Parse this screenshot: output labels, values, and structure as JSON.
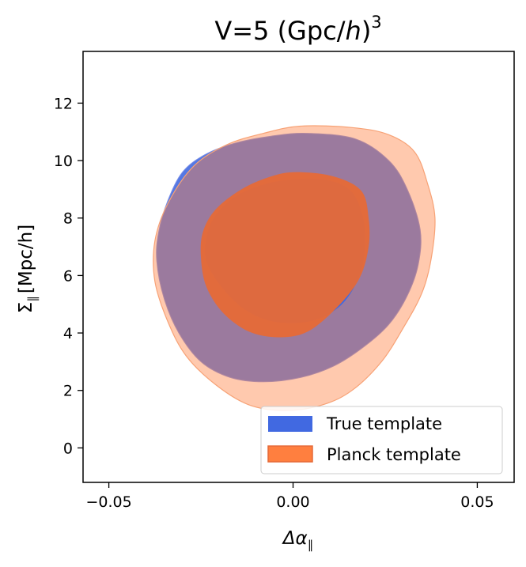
{
  "chart_data": {
    "type": "contour",
    "title": "V=5 (Gpc/h)^3",
    "title_parts": {
      "prefix": "V=5 (Gpc/",
      "italic": "h",
      "suffix": ")",
      "exponent": "3"
    },
    "xlabel": "Δα_∥",
    "xlabel_parts": {
      "symbol": "Δα",
      "subscript": "∥"
    },
    "ylabel": "Σ_∥ [Mpc/h]",
    "ylabel_parts": {
      "symbol": "Σ",
      "subscript": "∥",
      "rest": "[Mpc/h]"
    },
    "xlim": [
      -0.057,
      0.06
    ],
    "ylim": [
      -1.2,
      13.8
    ],
    "x_ticks": [
      {
        "value": -0.05,
        "label": "−0.05"
      },
      {
        "value": 0.0,
        "label": "0.00"
      },
      {
        "value": 0.05,
        "label": "0.05"
      }
    ],
    "y_ticks": [
      {
        "value": 0,
        "label": "0"
      },
      {
        "value": 2,
        "label": "2"
      },
      {
        "value": 4,
        "label": "4"
      },
      {
        "value": 6,
        "label": "6"
      },
      {
        "value": 8,
        "label": "8"
      },
      {
        "value": 10,
        "label": "10"
      },
      {
        "value": 12,
        "label": "12"
      }
    ],
    "legend_position": "lower right",
    "series": [
      {
        "name": "True template",
        "color": "#4169e1",
        "contours": [
          {
            "level": "2-sigma",
            "points": [
              [
                0.004,
                10.95
              ],
              [
                0.017,
                10.75
              ],
              [
                0.026,
                10.0
              ],
              [
                0.031,
                9.0
              ],
              [
                0.0345,
                7.6
              ],
              [
                0.034,
                6.4
              ],
              [
                0.031,
                5.3
              ],
              [
                0.026,
                4.3
              ],
              [
                0.019,
                3.5
              ],
              [
                0.011,
                2.85
              ],
              [
                0.002,
                2.45
              ],
              [
                -0.008,
                2.3
              ],
              [
                -0.017,
                2.45
              ],
              [
                -0.025,
                3.0
              ],
              [
                -0.031,
                4.0
              ],
              [
                -0.035,
                5.2
              ],
              [
                -0.037,
                6.5
              ],
              [
                -0.0365,
                7.5
              ],
              [
                -0.034,
                8.6
              ],
              [
                -0.03,
                9.6
              ],
              [
                -0.024,
                10.2
              ],
              [
                -0.016,
                10.6
              ],
              [
                -0.006,
                10.85
              ]
            ]
          },
          {
            "level": "1-sigma",
            "points": [
              [
                0.001,
                9.35
              ],
              [
                0.01,
                9.3
              ],
              [
                0.016,
                8.9
              ],
              [
                0.019,
                8.0
              ],
              [
                0.0195,
                7.0
              ],
              [
                0.018,
                6.0
              ],
              [
                0.014,
                5.1
              ],
              [
                0.008,
                4.55
              ],
              [
                0.001,
                4.35
              ],
              [
                -0.007,
                4.45
              ],
              [
                -0.014,
                4.9
              ],
              [
                -0.02,
                5.7
              ],
              [
                -0.0235,
                6.5
              ],
              [
                -0.0235,
                7.3
              ],
              [
                -0.021,
                8.1
              ],
              [
                -0.015,
                8.8
              ],
              [
                -0.007,
                9.2
              ]
            ]
          }
        ]
      },
      {
        "name": "Planck template",
        "color": "#ff7f3f",
        "contours": [
          {
            "level": "2-sigma",
            "points": [
              [
                0.002,
                11.2
              ],
              [
                0.016,
                11.15
              ],
              [
                0.026,
                10.9
              ],
              [
                0.033,
                10.3
              ],
              [
                0.0365,
                9.2
              ],
              [
                0.0385,
                8.0
              ],
              [
                0.0375,
                6.6
              ],
              [
                0.035,
                5.4
              ],
              [
                0.03,
                4.2
              ],
              [
                0.024,
                3.0
              ],
              [
                0.016,
                2.0
              ],
              [
                0.008,
                1.5
              ],
              [
                -0.002,
                1.3
              ],
              [
                -0.012,
                1.5
              ],
              [
                -0.021,
                2.2
              ],
              [
                -0.029,
                3.2
              ],
              [
                -0.034,
                4.4
              ],
              [
                -0.0375,
                5.8
              ],
              [
                -0.0375,
                7.2
              ],
              [
                -0.034,
                8.5
              ],
              [
                -0.027,
                9.8
              ],
              [
                -0.018,
                10.55
              ],
              [
                -0.008,
                10.95
              ]
            ]
          },
          {
            "level": "1-sigma",
            "points": [
              [
                0.001,
                9.6
              ],
              [
                0.011,
                9.45
              ],
              [
                0.0185,
                8.95
              ],
              [
                0.0205,
                8.0
              ],
              [
                0.0205,
                7.0
              ],
              [
                0.018,
                5.9
              ],
              [
                0.012,
                4.9
              ],
              [
                0.004,
                4.05
              ],
              [
                -0.004,
                3.85
              ],
              [
                -0.012,
                4.05
              ],
              [
                -0.019,
                4.7
              ],
              [
                -0.0235,
                5.6
              ],
              [
                -0.025,
                6.6
              ],
              [
                -0.0245,
                7.5
              ],
              [
                -0.021,
                8.3
              ],
              [
                -0.014,
                9.0
              ],
              [
                -0.006,
                9.45
              ]
            ]
          }
        ]
      }
    ]
  }
}
